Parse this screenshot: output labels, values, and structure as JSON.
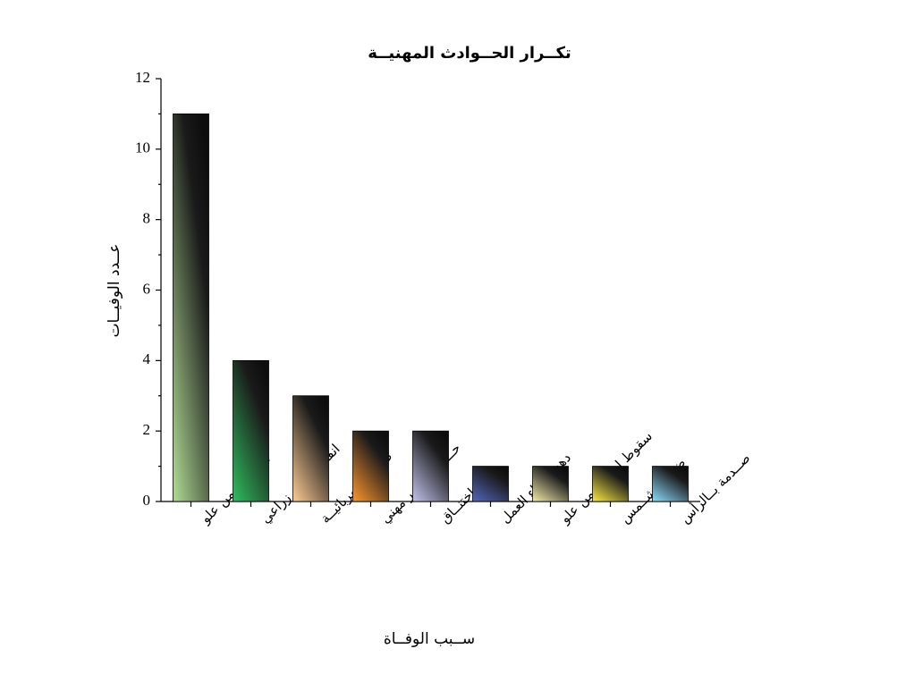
{
  "chart_data": {
    "type": "bar",
    "title": "تكــرار الحــوادث المهنيــة",
    "x_label": "ســبب الوفــاة",
    "y_label": "عــدد الوفيــات",
    "categories": [
      "السقوط من علو",
      "انقلاب جرار زراعي",
      "صــعقة كهربائيــة",
      "حــادث ســير مهني",
      "اختنــاق",
      "دهس أثناء العمل",
      "سقوط اجسام من علو",
      "ضربــة شــمس",
      "صــدمة بــالرأس"
    ],
    "values": [
      11,
      4,
      3,
      2,
      2,
      1,
      1,
      1,
      1
    ],
    "colors": [
      "#a9d18e",
      "#2fb45a",
      "#f2c28e",
      "#f0902c",
      "#b9b9e2",
      "#5262b2",
      "#e9e1a2",
      "#f0e040",
      "#84d3f2"
    ],
    "ylim": [
      0,
      12
    ],
    "yticks": [
      0,
      2,
      4,
      6,
      8,
      10,
      12
    ],
    "grid": false
  }
}
